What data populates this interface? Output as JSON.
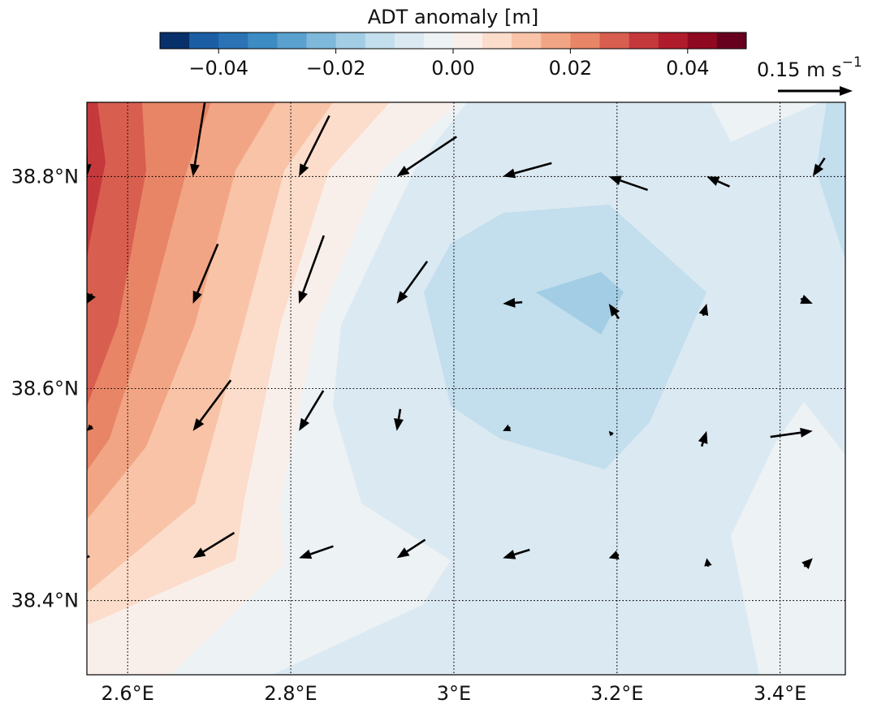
{
  "chart_data": {
    "type": "heatmap",
    "subtype": "filled-contour map with velocity quiver arrows",
    "colorbar": {
      "title": "ADT anomaly [m]",
      "levels": [
        -0.05,
        -0.045,
        -0.04,
        -0.035,
        -0.03,
        -0.025,
        -0.02,
        -0.015,
        -0.01,
        -0.005,
        0.0,
        0.005,
        0.01,
        0.015,
        0.02,
        0.025,
        0.03,
        0.035,
        0.04,
        0.045,
        0.05
      ],
      "colors": [
        "#08306b",
        "#1c5ea4",
        "#2b73b4",
        "#3c8bc3",
        "#5aa1cf",
        "#7eb8da",
        "#a2cde4",
        "#c3deed",
        "#dbe9f2",
        "#edf2f5",
        "#f9efea",
        "#fcdcca",
        "#f8c3a7",
        "#f2a584",
        "#e88567",
        "#d85f4f",
        "#c5393c",
        "#b11c2c",
        "#8f0a21",
        "#67001f"
      ],
      "tick_values": [
        -0.04,
        -0.02,
        0.0,
        0.02,
        0.04
      ],
      "tick_labels": [
        "−0.04",
        "−0.02",
        "0.00",
        "0.02",
        "0.04"
      ]
    },
    "x_axis": {
      "range": [
        2.55,
        3.48
      ],
      "ticks": [
        2.6,
        2.8,
        3.0,
        3.2,
        3.4
      ],
      "tick_labels": [
        "2.6°E",
        "2.8°E",
        "3°E",
        "3.2°E",
        "3.4°E"
      ]
    },
    "y_axis": {
      "range": [
        38.33,
        38.87
      ],
      "ticks": [
        38.4,
        38.6,
        38.8
      ],
      "tick_labels": [
        "38.4°N",
        "38.6°N",
        "38.8°N"
      ]
    },
    "grid": true,
    "quiver_key": {
      "label": "0.15 m s",
      "exponent": "−1",
      "speed": 0.15
    },
    "vectors": [
      {
        "lon": 2.55,
        "lat": 38.8,
        "u": 0.003,
        "v": -0.15
      },
      {
        "lon": 2.68,
        "lat": 38.8,
        "u": -0.024,
        "v": -0.15
      },
      {
        "lon": 2.81,
        "lat": 38.8,
        "u": -0.061,
        "v": -0.122
      },
      {
        "lon": 2.93,
        "lat": 38.8,
        "u": -0.12,
        "v": -0.08
      },
      {
        "lon": 3.06,
        "lat": 38.8,
        "u": -0.098,
        "v": -0.027
      },
      {
        "lon": 3.19,
        "lat": 38.8,
        "u": -0.078,
        "v": 0.027
      },
      {
        "lon": 3.31,
        "lat": 38.8,
        "u": -0.046,
        "v": 0.02
      },
      {
        "lon": 3.44,
        "lat": 38.8,
        "u": -0.024,
        "v": -0.037
      },
      {
        "lon": 2.55,
        "lat": 38.68,
        "u": -0.01,
        "v": -0.02
      },
      {
        "lon": 2.68,
        "lat": 38.68,
        "u": -0.05,
        "v": -0.12
      },
      {
        "lon": 2.81,
        "lat": 38.68,
        "u": -0.05,
        "v": -0.137
      },
      {
        "lon": 2.93,
        "lat": 38.68,
        "u": -0.061,
        "v": -0.085
      },
      {
        "lon": 3.06,
        "lat": 38.68,
        "u": -0.039,
        "v": -0.003
      },
      {
        "lon": 3.19,
        "lat": 38.68,
        "u": -0.02,
        "v": 0.03
      },
      {
        "lon": 3.31,
        "lat": 38.68,
        "u": 0.007,
        "v": 0.024
      },
      {
        "lon": 3.44,
        "lat": 38.68,
        "u": 0.024,
        "v": -0.01
      },
      {
        "lon": 2.55,
        "lat": 38.56,
        "u": -0.01,
        "v": -0.01
      },
      {
        "lon": 2.68,
        "lat": 38.56,
        "u": -0.076,
        "v": -0.102
      },
      {
        "lon": 2.81,
        "lat": 38.56,
        "u": -0.049,
        "v": -0.081
      },
      {
        "lon": 2.93,
        "lat": 38.56,
        "u": -0.007,
        "v": -0.044
      },
      {
        "lon": 3.06,
        "lat": 38.56,
        "u": -0.015,
        "v": -0.007
      },
      {
        "lon": 3.19,
        "lat": 38.56,
        "u": -0.007,
        "v": 0.008
      },
      {
        "lon": 3.31,
        "lat": 38.56,
        "u": 0.01,
        "v": 0.031
      },
      {
        "lon": 3.44,
        "lat": 38.56,
        "u": 0.085,
        "v": 0.012
      },
      {
        "lon": 2.55,
        "lat": 38.44,
        "u": -0.005,
        "v": -0.005
      },
      {
        "lon": 2.68,
        "lat": 38.44,
        "u": -0.083,
        "v": -0.051
      },
      {
        "lon": 2.81,
        "lat": 38.44,
        "u": -0.069,
        "v": -0.024
      },
      {
        "lon": 2.93,
        "lat": 38.44,
        "u": -0.057,
        "v": -0.037
      },
      {
        "lon": 3.06,
        "lat": 38.44,
        "u": -0.054,
        "v": -0.017
      },
      {
        "lon": 3.19,
        "lat": 38.44,
        "u": -0.02,
        "v": -0.007
      },
      {
        "lon": 3.31,
        "lat": 38.44,
        "u": -0.003,
        "v": 0.017
      },
      {
        "lon": 3.44,
        "lat": 38.44,
        "u": 0.017,
        "v": 0.017
      }
    ]
  }
}
